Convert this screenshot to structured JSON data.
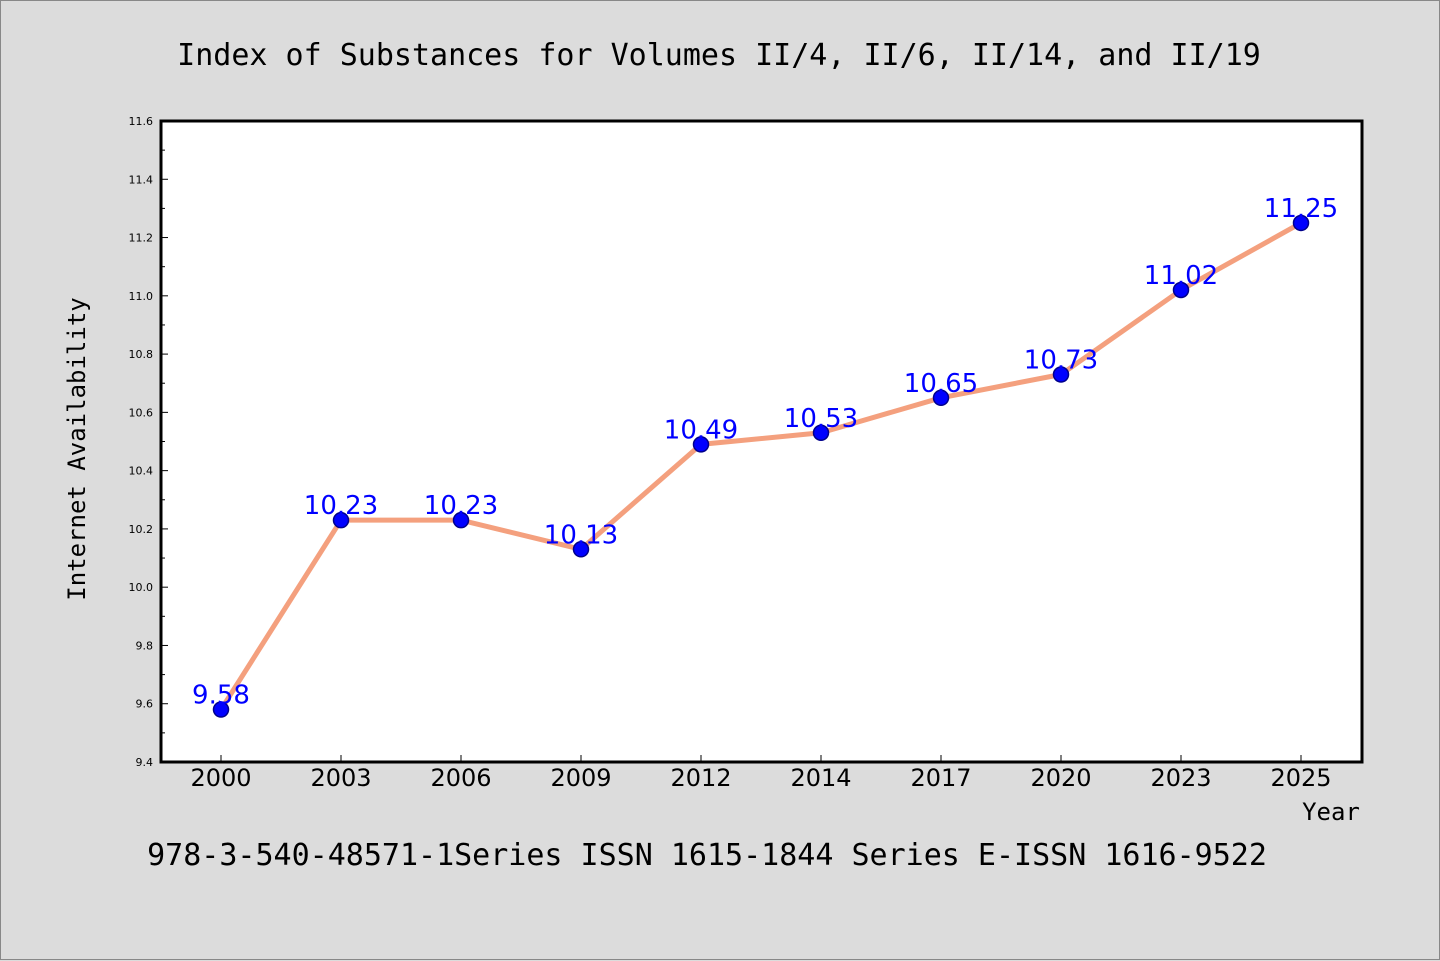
{
  "chart_data": {
    "type": "line",
    "title": "Index of Substances for Volumes II/4, II/6, II/14, and II/19",
    "subtitle": "978-3-540-48571-1Series ISSN 1615-1844 Series E-ISSN 1616-9522",
    "xlabel": "Year",
    "ylabel": "Internet Availability",
    "categories": [
      "2000",
      "2003",
      "2006",
      "2009",
      "2012",
      "2014",
      "2017",
      "2020",
      "2023",
      "2025"
    ],
    "values": [
      9.58,
      10.23,
      10.23,
      10.13,
      10.49,
      10.53,
      10.65,
      10.73,
      11.02,
      11.25
    ],
    "data_labels": [
      "9.58",
      "10.23",
      "10.23",
      "10.13",
      "10.49",
      "10.53",
      "10.65",
      "10.73",
      "11.02",
      "11.25"
    ],
    "ylim": [
      9.4,
      11.6
    ],
    "yticks": [
      "9.4",
      "9.6",
      "9.8",
      "10.0",
      "10.2",
      "10.4",
      "10.6",
      "10.8",
      "11.0",
      "11.2",
      "11.4",
      "11.6"
    ],
    "grid": false,
    "colors": {
      "line": "#f4a07e",
      "marker": "#0000ff",
      "marker_edge": "#00008b",
      "data_label": "#0000ff",
      "plot_bg": "#ffffff",
      "page_bg": "#dcdcdc"
    }
  }
}
